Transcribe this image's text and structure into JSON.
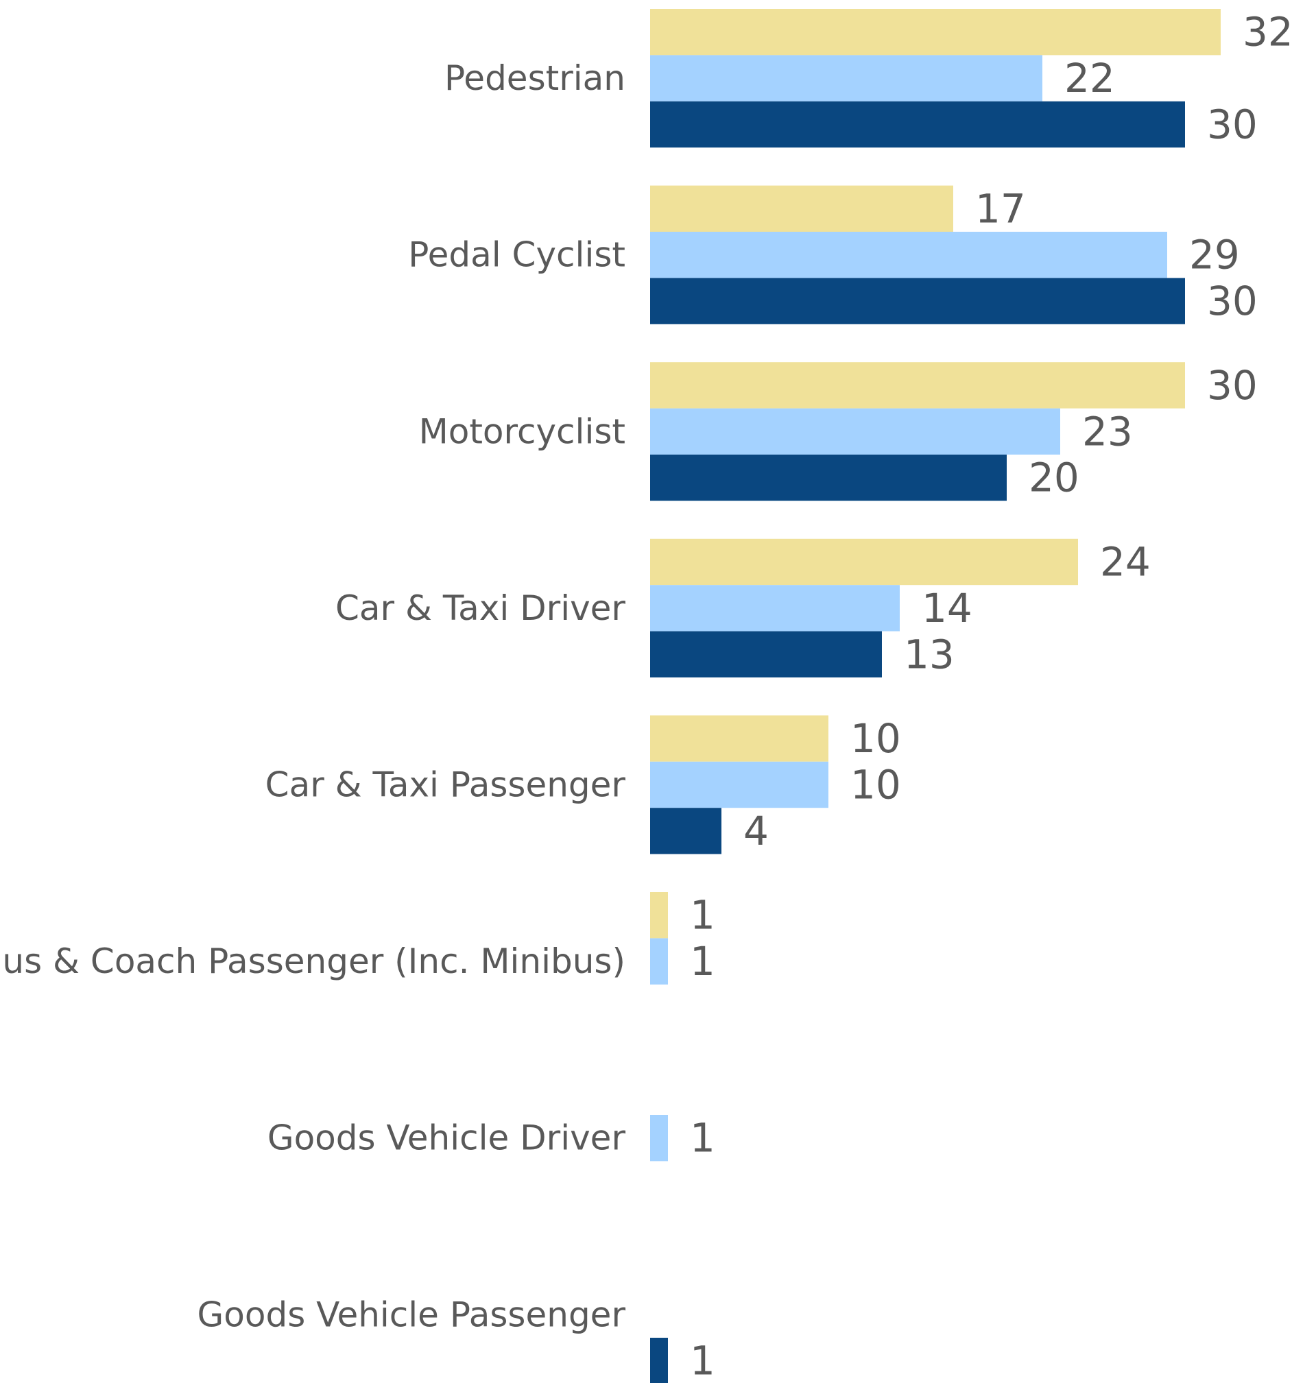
{
  "colors": {
    "series_0": "#F0E199",
    "series_1": "#A4D2FF",
    "series_2": "#0A4780",
    "label_text": "#595959",
    "background": "#FFFFFF"
  },
  "chart_data": {
    "type": "bar",
    "orientation": "horizontal",
    "title": "",
    "xlabel": "",
    "ylabel": "",
    "grid": false,
    "legend": "none",
    "xlim": [
      0,
      32
    ],
    "categories": [
      "Pedestrian",
      "Pedal Cyclist",
      "Motorcyclist",
      "Car & Taxi Driver",
      "Car & Taxi Passenger",
      "Bus & Coach Passenger (Inc. Minibus)",
      "Goods Vehicle Driver",
      "Goods Vehicle Passenger"
    ],
    "series": [
      {
        "values": [
          32,
          17,
          30,
          24,
          10,
          1,
          null,
          null
        ]
      },
      {
        "values": [
          22,
          29,
          23,
          14,
          10,
          1,
          1,
          null
        ]
      },
      {
        "values": [
          30,
          30,
          20,
          13,
          4,
          null,
          null,
          1
        ]
      }
    ]
  }
}
